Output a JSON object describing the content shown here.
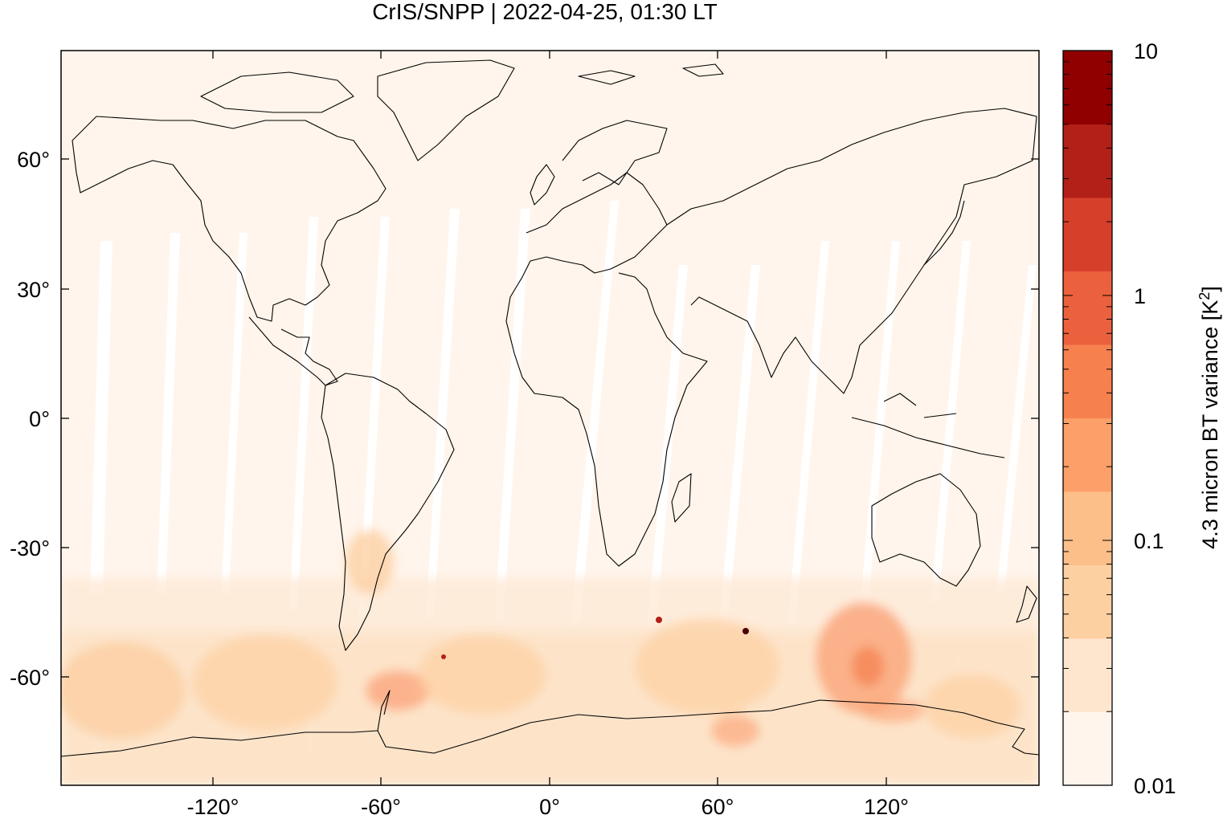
{
  "title": "CrIS/SNPP | 2022-04-25, 01:30 LT",
  "map": {
    "projection": "equirectangular",
    "lon_range": [
      -177,
      177
    ],
    "lat_range": [
      -90,
      90
    ],
    "lon_ticks": [
      -120,
      -60,
      0,
      60,
      120
    ],
    "lat_ticks": [
      60,
      30,
      0,
      -30,
      -60
    ],
    "lon_tick_labels": [
      "-120°",
      "-60°",
      "0°",
      "60°",
      "120°"
    ],
    "lat_tick_labels": [
      "60°",
      "30°",
      "0°",
      "-30°",
      "-60°"
    ],
    "background_color": "#fff5ec",
    "coastline_color": "#000000"
  },
  "colorbar": {
    "label": "4.3 micron BT variance [K²]",
    "label_main": "4.3 micron BT variance [K",
    "label_sup": "2",
    "label_end": "]",
    "scale": "log",
    "range": [
      0.01,
      10
    ],
    "tick_values": [
      10,
      1,
      0.1,
      0.01
    ],
    "tick_labels": [
      "10",
      "1",
      "0.1",
      "0.01"
    ],
    "colors": [
      "#fff5ec",
      "#fee6ce",
      "#fdd0a2",
      "#fdbf8a",
      "#fc9f68",
      "#f7804f",
      "#ec613d",
      "#d6402b",
      "#b22018",
      "#900000"
    ]
  },
  "chart_data": {
    "type": "heatmap",
    "title": "CrIS/SNPP | 2022-04-25, 01:30 LT",
    "xlabel": "",
    "ylabel": "",
    "xlim": [
      -177,
      177
    ],
    "ylim": [
      -90,
      90
    ],
    "color_scale": "log",
    "color_range": [
      0.01,
      10
    ],
    "summary_regions": [
      {
        "lon_range": [
          -177,
          177
        ],
        "lat_range": [
          -35,
          90
        ],
        "value": 0.01
      },
      {
        "lon_range": [
          -177,
          177
        ],
        "lat_range": [
          -80,
          -35
        ],
        "value": 0.08
      },
      {
        "lon_range": [
          100,
          125
        ],
        "lat_range": [
          -65,
          -45
        ],
        "value": 0.3
      },
      {
        "lon_range": [
          -62,
          -56
        ],
        "lat_range": [
          -67,
          -63
        ],
        "value": 0.3
      },
      {
        "lon_range": [
          -77,
          -67
        ],
        "lat_range": [
          -37,
          -30
        ],
        "value": 0.08
      }
    ]
  }
}
